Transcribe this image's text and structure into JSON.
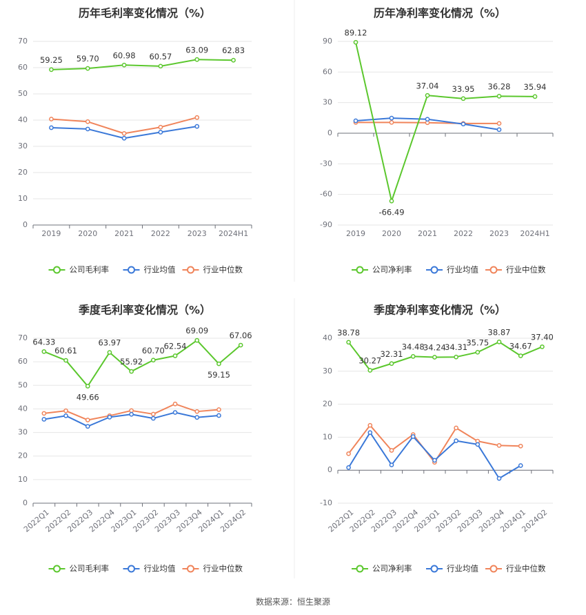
{
  "source_note": "数据来源：恒生聚源",
  "chart_data": [
    {
      "type": "line",
      "title": "历年毛利率变化情况（%）",
      "categories": [
        "2019",
        "2020",
        "2021",
        "2022",
        "2023",
        "2024H1"
      ],
      "ylim": [
        0,
        70
      ],
      "yticks": [
        0,
        10,
        20,
        30,
        40,
        50,
        60,
        70
      ],
      "grid": true,
      "legend_position": "bottom",
      "series": [
        {
          "name": "公司毛利率",
          "color": "#5bc72d",
          "values": [
            59.25,
            59.7,
            60.98,
            60.57,
            63.09,
            62.83
          ],
          "labels": [
            "59.25",
            "59.70",
            "60.98",
            "60.57",
            "63.09",
            "62.83"
          ]
        },
        {
          "name": "行业均值",
          "color": "#3a78d8",
          "values": [
            37.1,
            36.6,
            33.1,
            35.4,
            37.6,
            null
          ]
        },
        {
          "name": "行业中位数",
          "color": "#f0845a",
          "values": [
            40.4,
            39.4,
            34.9,
            37.3,
            41.0,
            null
          ]
        }
      ]
    },
    {
      "type": "line",
      "title": "历年净利率变化情况（%）",
      "categories": [
        "2019",
        "2020",
        "2021",
        "2022",
        "2023",
        "2024H1"
      ],
      "ylim": [
        -90,
        90
      ],
      "yticks": [
        -90,
        -60,
        -30,
        0,
        30,
        60,
        90
      ],
      "grid": true,
      "legend_position": "bottom",
      "series": [
        {
          "name": "公司净利率",
          "color": "#5bc72d",
          "values": [
            89.12,
            -66.49,
            37.04,
            33.95,
            36.28,
            35.94
          ],
          "labels": [
            "89.12",
            "-66.49",
            "37.04",
            "33.95",
            "36.28",
            "35.94"
          ]
        },
        {
          "name": "行业均值",
          "color": "#3a78d8",
          "values": [
            12.2,
            14.8,
            13.7,
            9.0,
            3.5,
            null
          ]
        },
        {
          "name": "行业中位数",
          "color": "#f0845a",
          "values": [
            10.6,
            10.6,
            10.3,
            9.6,
            9.6,
            null
          ]
        }
      ]
    },
    {
      "type": "line",
      "title": "季度毛利率变化情况（%）",
      "categories": [
        "2022Q1",
        "2022Q2",
        "2022Q3",
        "2022Q4",
        "2023Q1",
        "2023Q2",
        "2023Q3",
        "2023Q4",
        "2024Q1",
        "2024Q2"
      ],
      "ylim": [
        0,
        70
      ],
      "yticks": [
        0,
        10,
        20,
        30,
        40,
        50,
        60,
        70
      ],
      "grid": true,
      "legend_position": "bottom",
      "x_tick_rotation": -40,
      "series": [
        {
          "name": "公司毛利率",
          "color": "#5bc72d",
          "values": [
            64.33,
            60.61,
            49.66,
            63.97,
            55.92,
            60.7,
            62.54,
            69.09,
            59.15,
            67.06
          ],
          "labels": [
            "64.33",
            "60.61",
            "49.66",
            "63.97",
            "55.92",
            "60.70",
            "62.54",
            "69.09",
            "59.15",
            "67.06"
          ]
        },
        {
          "name": "行业均值",
          "color": "#3a78d8",
          "values": [
            35.6,
            37.1,
            32.6,
            36.5,
            37.7,
            36.0,
            38.5,
            36.4,
            37.2,
            null
          ]
        },
        {
          "name": "行业中位数",
          "color": "#f0845a",
          "values": [
            38.1,
            39.2,
            35.3,
            37.1,
            39.3,
            37.8,
            42.1,
            38.9,
            39.7,
            null
          ]
        }
      ]
    },
    {
      "type": "line",
      "title": "季度净利率变化情况（%）",
      "categories": [
        "2022Q1",
        "2022Q2",
        "2022Q3",
        "2022Q4",
        "2023Q1",
        "2023Q2",
        "2023Q3",
        "2023Q4",
        "2024Q1",
        "2024Q2"
      ],
      "ylim": [
        -10,
        40
      ],
      "yticks": [
        -10,
        0,
        10,
        20,
        30,
        40
      ],
      "grid": true,
      "legend_position": "bottom",
      "x_tick_rotation": -40,
      "series": [
        {
          "name": "公司净利率",
          "color": "#5bc72d",
          "values": [
            38.78,
            30.27,
            32.31,
            34.48,
            34.24,
            34.31,
            35.75,
            38.87,
            34.67,
            37.4
          ],
          "labels": [
            "38.78",
            "30.27",
            "32.31",
            "34.48",
            "34.24",
            "34.31",
            "35.75",
            "38.87",
            "34.67",
            "37.40"
          ]
        },
        {
          "name": "行业均值",
          "color": "#3a78d8",
          "values": [
            0.8,
            11.4,
            1.6,
            10.2,
            3.0,
            8.9,
            7.8,
            -2.5,
            1.4,
            null
          ]
        },
        {
          "name": "行业中位数",
          "color": "#f0845a",
          "values": [
            5.0,
            13.6,
            6.0,
            10.8,
            2.4,
            12.8,
            8.8,
            7.5,
            7.3,
            null
          ]
        }
      ]
    }
  ]
}
